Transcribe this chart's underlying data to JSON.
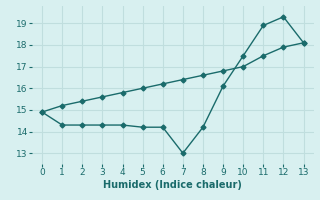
{
  "x": [
    0,
    1,
    2,
    3,
    4,
    5,
    6,
    7,
    8,
    9,
    10,
    11,
    12,
    13
  ],
  "y_data": [
    14.9,
    14.3,
    14.3,
    14.3,
    14.3,
    14.2,
    14.2,
    13.0,
    14.2,
    16.1,
    17.5,
    18.9,
    19.3,
    18.1
  ],
  "y_trend": [
    14.9,
    15.2,
    15.4,
    15.6,
    15.8,
    16.0,
    16.2,
    16.4,
    16.6,
    16.8,
    17.0,
    17.5,
    17.9,
    18.1
  ],
  "color": "#1a6b6b",
  "bg_color": "#d8f0f0",
  "grid_color": "#c0dede",
  "xlabel": "Humidex (Indice chaleur)",
  "ylim": [
    12.5,
    19.8
  ],
  "xlim": [
    -0.5,
    13.5
  ],
  "yticks": [
    13,
    14,
    15,
    16,
    17,
    18,
    19
  ],
  "xticks": [
    0,
    1,
    2,
    3,
    4,
    5,
    6,
    7,
    8,
    9,
    10,
    11,
    12,
    13
  ],
  "marker": "D",
  "markersize": 2.5,
  "linewidth": 1.0,
  "xlabel_fontsize": 7,
  "tick_fontsize": 6.5
}
